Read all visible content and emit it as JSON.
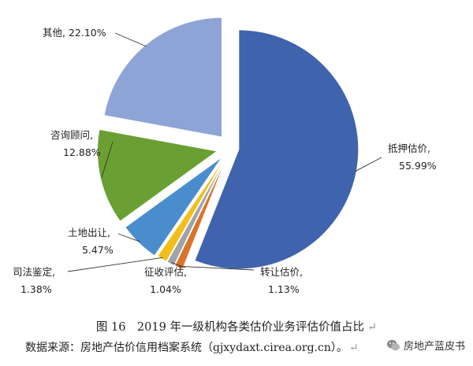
{
  "chart_data": {
    "type": "pie",
    "exploded": true,
    "slices": [
      {
        "label": "抵押估价,",
        "pct_label": "55.99%",
        "value": 55.99,
        "color": "#3f63ad"
      },
      {
        "label": "转让估价,",
        "pct_label": "1.13%",
        "value": 1.13,
        "color": "#d9742a"
      },
      {
        "label": "征收评估,",
        "pct_label": "1.04%",
        "value": 1.04,
        "color": "#9fa3a8"
      },
      {
        "label": "司法鉴定,",
        "pct_label": "1.38%",
        "value": 1.38,
        "color": "#f2bf1a"
      },
      {
        "label": "土地出让,",
        "pct_label": "5.47%",
        "value": 5.47,
        "color": "#4a8dcc"
      },
      {
        "label": "咨询顾问,",
        "pct_label": "12.88%",
        "value": 12.88,
        "color": "#6aa033"
      },
      {
        "label": "其他,",
        "pct_label": "22.10%",
        "value": 22.1,
        "color": "#8fa4d6"
      }
    ]
  },
  "caption": {
    "text": "图 16　2019 年一级机构各类估价业务评估价值占比",
    "mark": "↵"
  },
  "source": {
    "text": "数据来源：房地产估价信用档案系统（gjxydaxt.cirea.org.cn）。",
    "mark": "↵"
  },
  "watermark": {
    "text": "房地产蓝皮书",
    "icon": "wechat-icon"
  }
}
